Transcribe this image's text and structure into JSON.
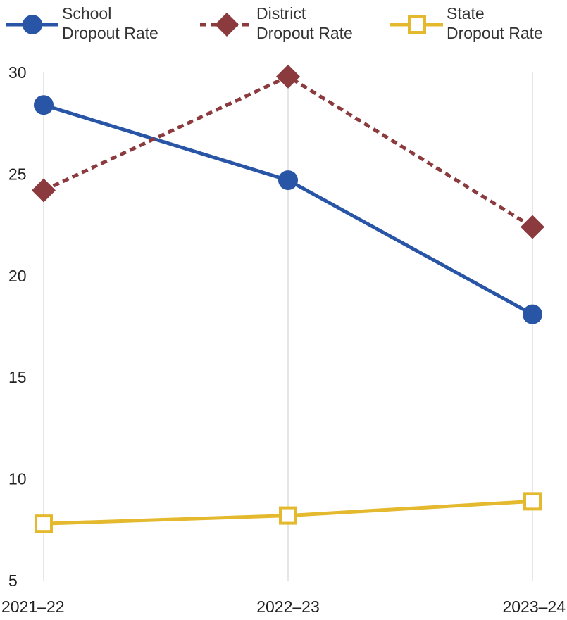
{
  "chart_data": {
    "type": "line",
    "title": "",
    "xlabel": "",
    "ylabel": "",
    "categories": [
      "2021–22",
      "2022–23",
      "2023–24"
    ],
    "ylim": [
      5,
      30
    ],
    "yticks": [
      "30",
      "25",
      "20",
      "15",
      "10",
      "5"
    ],
    "grid": "vertical lines at categories",
    "legend_position": "top",
    "series": [
      {
        "name_line1": "School",
        "name_line2": "Dropout Rate",
        "values": [
          28.4,
          24.7,
          18.1
        ],
        "color": "#2955a6",
        "marker": "circle",
        "dash": "solid"
      },
      {
        "name_line1": "District",
        "name_line2": "Dropout Rate",
        "values": [
          24.2,
          29.8,
          22.4
        ],
        "color": "#8b3a3e",
        "marker": "diamond",
        "dash": "dashed"
      },
      {
        "name_line1": "State",
        "name_line2": "Dropout Rate",
        "values": [
          7.8,
          8.2,
          8.9
        ],
        "color": "#e4b92e",
        "marker": "square-open",
        "dash": "solid"
      }
    ]
  }
}
